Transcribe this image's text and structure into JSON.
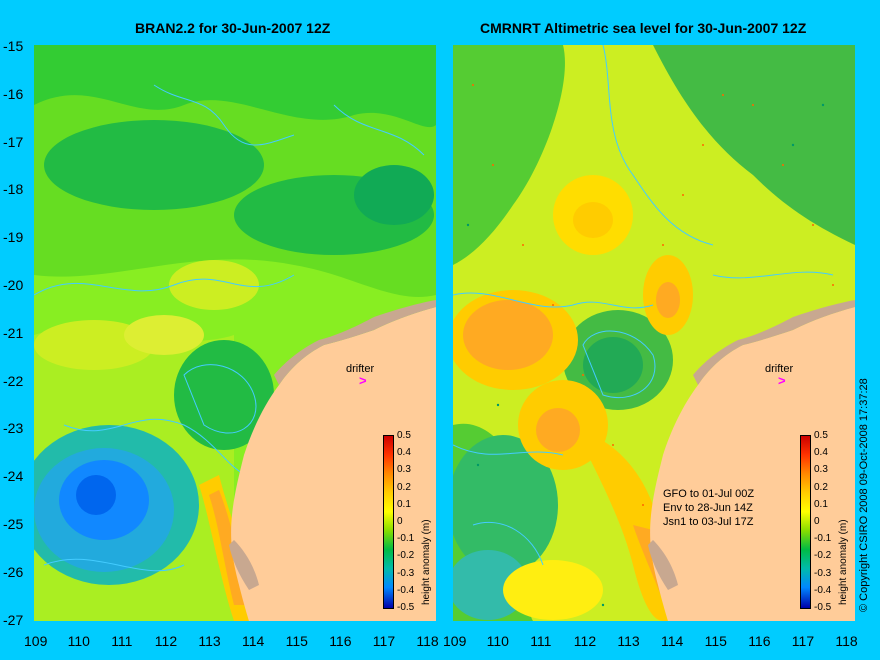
{
  "titles": {
    "left": "BRAN2.2 for 30-Jun-2007 12Z",
    "right": "CMRNRT Altimetric sea level  for 30-Jun-2007 12Z"
  },
  "axes": {
    "lat_ticks": [
      "-15",
      "-16",
      "-17",
      "-18",
      "-19",
      "-20",
      "-21",
      "-22",
      "-23",
      "-24",
      "-25",
      "-26",
      "-27"
    ],
    "lon_ticks": [
      "109",
      "110",
      "111",
      "112",
      "113",
      "114",
      "115",
      "116",
      "117",
      "118"
    ]
  },
  "colorbar": {
    "title": "height anomaly (m)",
    "labels": [
      "0.5",
      "0.4",
      "0.3",
      "0.2",
      "0.1",
      "0",
      "-0.1",
      "-0.2",
      "-0.3",
      "-0.4",
      "-0.5"
    ]
  },
  "drifter": {
    "label": "drifter",
    "symbol": ">"
  },
  "satellites": [
    "GFO to 01-Jul 00Z",
    "Env to 28-Jun 14Z",
    "Jsn1 to 03-Jul 17Z"
  ],
  "copyright": "© Copyright CSIRO 2008   09-Oct-2008 17:37:28",
  "colors": {
    "background": "#00ccff",
    "land": "#ffcc99",
    "coast_rock": "#c8a890",
    "contour": "#44ccff",
    "drifter": "#ff00ff"
  }
}
